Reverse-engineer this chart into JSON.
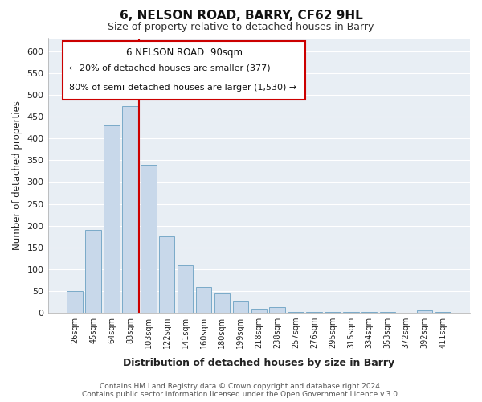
{
  "title": "6, NELSON ROAD, BARRY, CF62 9HL",
  "subtitle": "Size of property relative to detached houses in Barry",
  "xlabel": "Distribution of detached houses by size in Barry",
  "ylabel": "Number of detached properties",
  "bar_labels": [
    "26sqm",
    "45sqm",
    "64sqm",
    "83sqm",
    "103sqm",
    "122sqm",
    "141sqm",
    "160sqm",
    "180sqm",
    "199sqm",
    "218sqm",
    "238sqm",
    "257sqm",
    "276sqm",
    "295sqm",
    "315sqm",
    "334sqm",
    "353sqm",
    "372sqm",
    "392sqm",
    "411sqm"
  ],
  "bar_values": [
    50,
    190,
    430,
    475,
    340,
    175,
    108,
    60,
    44,
    25,
    10,
    13,
    2,
    1,
    1,
    1,
    1,
    1,
    0,
    5,
    1
  ],
  "bar_color": "#c8d8ea",
  "bar_edge_color": "#7aaac8",
  "ylim": [
    0,
    630
  ],
  "yticks": [
    0,
    50,
    100,
    150,
    200,
    250,
    300,
    350,
    400,
    450,
    500,
    550,
    600
  ],
  "vline_x_idx": 3.5,
  "vline_color": "#cc0000",
  "annotation_title": "6 NELSON ROAD: 90sqm",
  "annotation_line1": "← 20% of detached houses are smaller (377)",
  "annotation_line2": "80% of semi-detached houses are larger (1,530) →",
  "annotation_box_color": "#ffffff",
  "annotation_box_edge": "#cc0000",
  "footer1": "Contains HM Land Registry data © Crown copyright and database right 2024.",
  "footer2": "Contains public sector information licensed under the Open Government Licence v.3.0.",
  "background_color": "#ffffff",
  "plot_bg_color": "#e8eef4",
  "grid_color": "#ffffff"
}
